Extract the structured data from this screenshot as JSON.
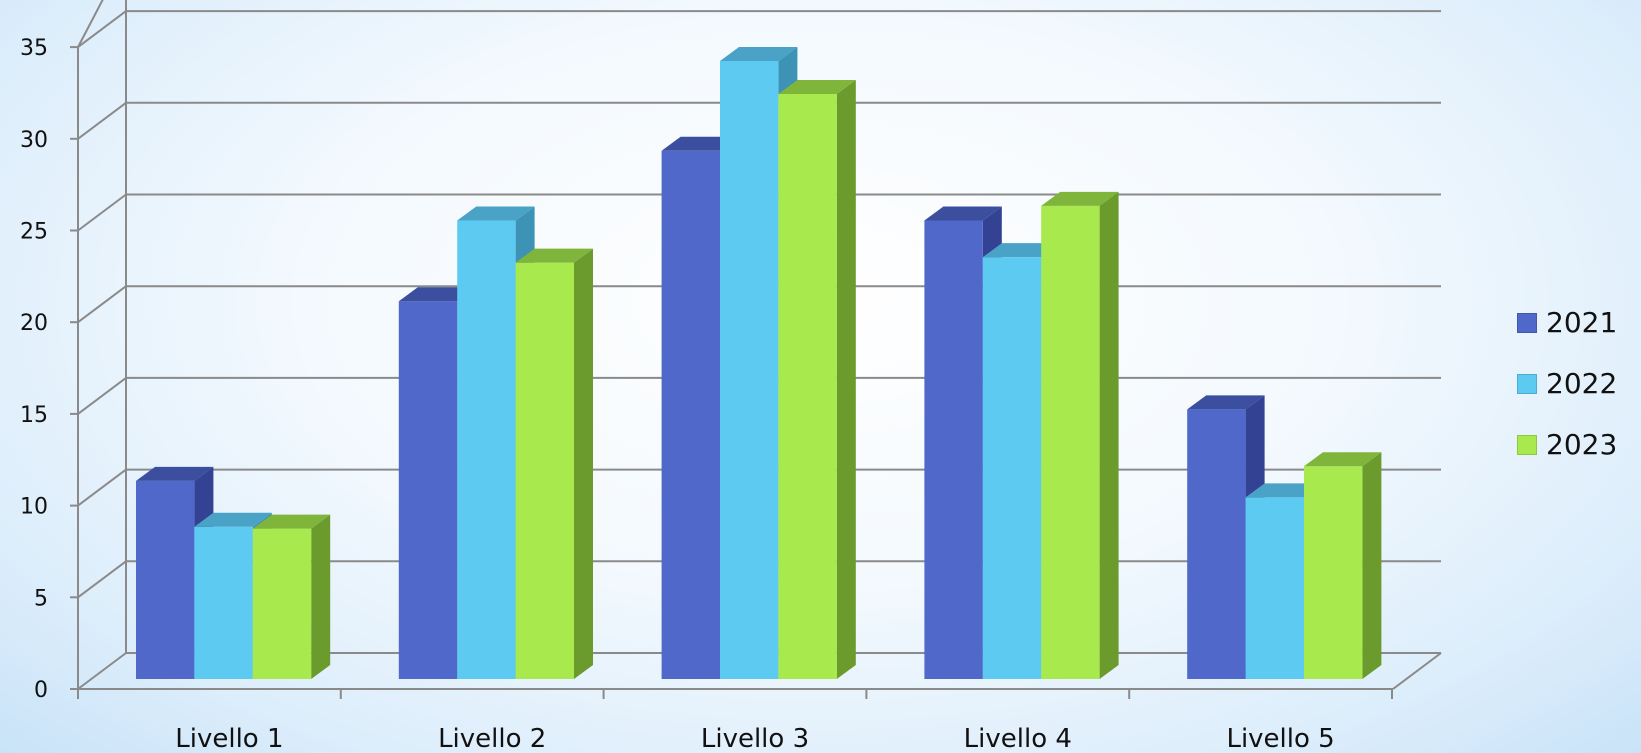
{
  "chart_data": {
    "type": "bar",
    "categories": [
      "Livello 1",
      "Livello 2",
      "Livello 3",
      "Livello 4",
      "Livello 5"
    ],
    "series": [
      {
        "name": "2021",
        "values": [
          10.8,
          20.6,
          28.8,
          25.0,
          14.7
        ],
        "color": "#4f68c9",
        "side_color": "#334292",
        "top_color": "#3b4f9e"
      },
      {
        "name": "2022",
        "values": [
          8.3,
          25.0,
          33.7,
          23.0,
          9.9
        ],
        "color": "#5dcbf1",
        "side_color": "#3d93b6",
        "top_color": "#4aa3c6"
      },
      {
        "name": "2023",
        "values": [
          8.2,
          22.7,
          31.9,
          25.8,
          11.6
        ],
        "color": "#a8ea4e",
        "side_color": "#6a9b2c",
        "top_color": "#7fb53a"
      }
    ],
    "y_ticks": [
      "0",
      "5",
      "10",
      "15",
      "20",
      "25",
      "30",
      "35"
    ],
    "ylim": [
      0,
      35
    ],
    "grid": true,
    "legend_position": "right",
    "title": "",
    "xlabel": "",
    "ylabel": ""
  }
}
